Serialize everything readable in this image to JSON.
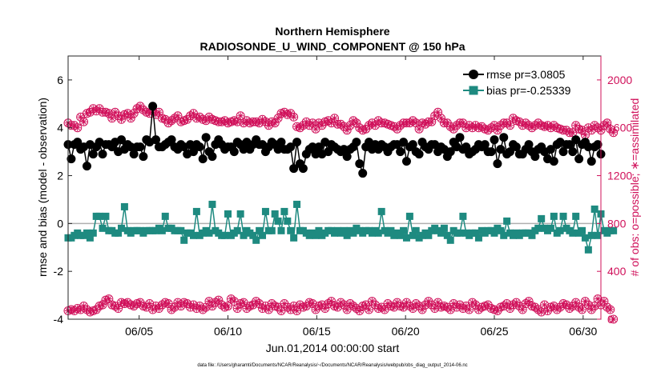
{
  "chart_data": {
    "type": "line",
    "title_line1": "Northern Hemisphere",
    "title_line2": "RADIOSONDE_U_WIND_COMPONENT @ 150 hPa",
    "xlabel": "Jun.01,2014 00:00:00 start",
    "ylabel_left": "rmse and bias (model - observation)",
    "ylabel_right": "# of obs: o=possible; ∗=assimilated",
    "footer": "data file: /Users/gharamti/Documents/NCAR/Reanalysis/~/Documents/NCAR/Reanalysis/webpub/obs_diag_output_2014-06.nc",
    "x_ticks": [
      "06/05",
      "06/10",
      "06/15",
      "06/20",
      "06/25",
      "06/30"
    ],
    "x_tick_days": [
      5,
      10,
      15,
      20,
      25,
      30
    ],
    "xlim": [
      1.0,
      31.0
    ],
    "ylim_left": [
      -4,
      7
    ],
    "y_ticks_left": [
      "-4",
      "-2",
      "0",
      "2",
      "4",
      "6"
    ],
    "ylim_right": [
      0,
      2200
    ],
    "y_ticks_right": [
      "0",
      "400",
      "800",
      "1200",
      "1600",
      "2000"
    ],
    "zero_line": 0,
    "colors": {
      "rmse": "#000000",
      "bias": "#1e8a80",
      "obs": "#d0105a",
      "zero": "#b0b0b0"
    },
    "legend": [
      {
        "label": "rmse pr=3.0805",
        "key": "rmse"
      },
      {
        "label": "bias pr=-0.25339",
        "key": "bias"
      }
    ],
    "series": [
      {
        "name": "rmse",
        "values": [
          3.3,
          2.7,
          3.3,
          3.4,
          3.1,
          3.2,
          2.4,
          3.3,
          2.9,
          3.2,
          3.4,
          2.9,
          3.3,
          3.3,
          3.2,
          3.4,
          3.0,
          3.5,
          3.1,
          3.3,
          3.2,
          2.9,
          3.2,
          3.2,
          2.8,
          3.5,
          3.4,
          4.9,
          3.5,
          3.2,
          3.2,
          3.3,
          3.4,
          3.5,
          3.2,
          3.1,
          3.3,
          3.2,
          2.9,
          3.3,
          3.0,
          3.3,
          3.2,
          2.7,
          3.6,
          3.0,
          2.8,
          3.3,
          3.5,
          3.3,
          3.1,
          3.2,
          3.2,
          3.0,
          3.4,
          3.3,
          3.1,
          3.4,
          3.1,
          3.3,
          3.5,
          3.3,
          3.3,
          3.0,
          3.2,
          3.4,
          3.3,
          3.1,
          3.4,
          3.1,
          3.1,
          3.2,
          2.3,
          3.4,
          2.5,
          2.3,
          2.9,
          3.1,
          3.2,
          2.9,
          3.2,
          2.9,
          3.4,
          3.0,
          3.3,
          3.2,
          3.1,
          3.0,
          3.1,
          2.8,
          3.1,
          3.2,
          3.4,
          2.5,
          2.1,
          3.2,
          3.4,
          3.1,
          3.3,
          3.1,
          3.3,
          3.2,
          3.0,
          3.2,
          3.3,
          3.3,
          3.0,
          3.4,
          2.6,
          3.2,
          3.3,
          3.0,
          2.9,
          3.4,
          3.2,
          3.1,
          3.3,
          3.3,
          3.0,
          3.2,
          3.1,
          2.8,
          3.0,
          3.4,
          3.2,
          3.6,
          3.1,
          3.2,
          2.9,
          3.0,
          3.1,
          3.3,
          3.2,
          3.3,
          3.0,
          3.0,
          3.5,
          2.5,
          3.1,
          3.6,
          2.9,
          3.0,
          3.3,
          3.2,
          2.9,
          2.9,
          3.1,
          3.3,
          3.0,
          2.8,
          3.1,
          3.2,
          3.0,
          2.7,
          3.1,
          2.6,
          3.3,
          3.4,
          3.0,
          3.3,
          3.3,
          3.0,
          3.5,
          2.7,
          3.3,
          3.4,
          3.2,
          2.6,
          3.2,
          3.3,
          2.9
        ]
      },
      {
        "name": "bias",
        "values": [
          -0.6,
          -0.6,
          -0.5,
          -0.4,
          -0.5,
          -0.5,
          -0.4,
          -0.6,
          -0.4,
          0.3,
          0.3,
          -0.2,
          0.3,
          -0.3,
          -0.3,
          -0.4,
          -0.4,
          -0.2,
          0.7,
          -0.3,
          -0.4,
          -0.3,
          -0.3,
          -0.3,
          -0.4,
          -0.3,
          -0.3,
          -0.3,
          -0.3,
          -0.2,
          -0.3,
          0.3,
          -0.2,
          -0.2,
          -0.3,
          -0.3,
          -0.3,
          -0.7,
          -0.4,
          -0.4,
          -0.5,
          0.5,
          -0.5,
          -0.4,
          -0.3,
          -0.4,
          0.8,
          -0.3,
          -0.4,
          -0.5,
          -0.5,
          0.4,
          -0.5,
          -0.4,
          -0.3,
          0.4,
          -0.5,
          -0.3,
          -0.4,
          -0.5,
          -0.7,
          -0.3,
          -0.5,
          0.5,
          -0.3,
          -0.3,
          0.4,
          0.1,
          -0.3,
          0.5,
          0.1,
          -0.3,
          -0.6,
          0.8,
          -0.3,
          -0.3,
          -0.4,
          -0.5,
          -0.4,
          -0.5,
          -0.3,
          -0.5,
          -0.4,
          -0.3,
          -0.3,
          -0.4,
          -0.3,
          -0.4,
          -0.3,
          -0.5,
          -0.3,
          -0.4,
          -0.2,
          -0.3,
          -0.4,
          -0.3,
          -0.3,
          -0.4,
          -0.3,
          -0.4,
          0.5,
          -0.3,
          -0.4,
          -0.3,
          -0.5,
          -0.4,
          -0.5,
          -0.3,
          -0.6,
          0.3,
          -0.5,
          -0.3,
          -0.6,
          -0.5,
          -0.4,
          -0.5,
          -0.3,
          -0.2,
          -0.3,
          -0.4,
          -0.2,
          -0.5,
          -0.7,
          -0.3,
          -0.4,
          -0.4,
          0.3,
          -0.4,
          -0.5,
          -0.4,
          -0.4,
          -0.6,
          -0.3,
          -0.4,
          -0.3,
          -0.3,
          -0.4,
          -0.2,
          -0.3,
          -0.5,
          0.1,
          -0.4,
          -0.5,
          -0.4,
          -0.5,
          -0.4,
          -0.4,
          -0.4,
          -0.5,
          -0.3,
          -0.2,
          0.2,
          -0.2,
          -0.3,
          -0.2,
          0.3,
          -0.4,
          -0.3,
          0.3,
          -0.2,
          -0.3,
          -0.4,
          0.3,
          -0.4,
          -0.3,
          -0.6,
          -1.1,
          -0.5,
          0.6,
          -0.5,
          0.4,
          -0.3,
          -0.4,
          -0.3,
          -0.3
        ]
      },
      {
        "name": "obs_possible_upper",
        "values": [
          1640,
          1620,
          1620,
          1600,
          1690,
          1650,
          1720,
          1730,
          1760,
          1740,
          1760,
          1730,
          1730,
          1720,
          1680,
          1730,
          1700,
          1670,
          1710,
          1720,
          1680,
          1720,
          1760,
          1780,
          1750,
          1730,
          1720,
          1740,
          1710,
          1730,
          1680,
          1670,
          1640,
          1660,
          1680,
          1700,
          1650,
          1660,
          1670,
          1700,
          1720,
          1680,
          1690,
          1670,
          1660,
          1690,
          1670,
          1660,
          1650,
          1650,
          1660,
          1640,
          1650,
          1660,
          1650,
          1700,
          1640,
          1660,
          1640,
          1650,
          1650,
          1640,
          1670,
          1650,
          1620,
          1650,
          1640,
          1680,
          1720,
          1730,
          1710,
          1720,
          1690,
          1610,
          1600,
          1620,
          1650,
          1620,
          1640,
          1590,
          1640,
          1620,
          1650,
          1660,
          1640,
          1680,
          1630,
          1630,
          1610,
          1580,
          1620,
          1660,
          1640,
          1600,
          1580,
          1590,
          1620,
          1640,
          1620,
          1660,
          1640,
          1640,
          1630,
          1620,
          1610,
          1590,
          1620,
          1640,
          1640,
          1640,
          1660,
          1640,
          1590,
          1640,
          1630,
          1650,
          1650,
          1700,
          1730,
          1680,
          1640,
          1640,
          1610,
          1590,
          1620,
          1640,
          1640,
          1600,
          1620,
          1600,
          1620,
          1600,
          1610,
          1590,
          1580,
          1600,
          1620,
          1580,
          1620,
          1640,
          1640,
          1620,
          1680,
          1660,
          1650,
          1620,
          1640,
          1620,
          1600,
          1620,
          1640,
          1620,
          1610,
          1620,
          1600,
          1620,
          1600,
          1590,
          1580,
          1580,
          1560,
          1560,
          1620,
          1590,
          1580,
          1540,
          1600,
          1580,
          1620,
          1600,
          1580,
          1620,
          1640,
          1590,
          1560
        ]
      },
      {
        "name": "obs_assimilated_upper",
        "values": [
          1640,
          1620,
          1620,
          1600,
          1690,
          1650,
          1720,
          1730,
          1760,
          1740,
          1760,
          1730,
          1730,
          1720,
          1680,
          1730,
          1700,
          1670,
          1710,
          1720,
          1680,
          1720,
          1760,
          1780,
          1750,
          1730,
          1720,
          1740,
          1710,
          1730,
          1680,
          1670,
          1640,
          1660,
          1680,
          1700,
          1650,
          1660,
          1670,
          1700,
          1720,
          1680,
          1690,
          1670,
          1660,
          1690,
          1670,
          1660,
          1650,
          1650,
          1660,
          1640,
          1650,
          1660,
          1650,
          1700,
          1640,
          1660,
          1640,
          1650,
          1650,
          1640,
          1670,
          1650,
          1620,
          1650,
          1640,
          1680,
          1720,
          1730,
          1710,
          1720,
          1690,
          1610,
          1600,
          1620,
          1650,
          1620,
          1640,
          1590,
          1640,
          1620,
          1650,
          1660,
          1640,
          1680,
          1630,
          1630,
          1610,
          1580,
          1620,
          1660,
          1640,
          1600,
          1580,
          1590,
          1620,
          1640,
          1620,
          1660,
          1640,
          1640,
          1630,
          1620,
          1610,
          1590,
          1620,
          1640,
          1640,
          1640,
          1660,
          1640,
          1590,
          1640,
          1630,
          1650,
          1650,
          1700,
          1730,
          1680,
          1640,
          1640,
          1610,
          1590,
          1620,
          1640,
          1640,
          1600,
          1620,
          1600,
          1620,
          1600,
          1610,
          1590,
          1580,
          1600,
          1620,
          1580,
          1620,
          1640,
          1640,
          1620,
          1680,
          1660,
          1650,
          1620,
          1640,
          1620,
          1600,
          1620,
          1640,
          1620,
          1610,
          1620,
          1600,
          1620,
          1600,
          1590,
          1580,
          1580,
          1560,
          1560,
          1620,
          1590,
          1580,
          1540,
          1600,
          1580,
          1620,
          1600,
          1580,
          1620,
          1640,
          1590,
          1560
        ]
      },
      {
        "name": "obs_possible_lower",
        "values": [
          70,
          80,
          70,
          90,
          80,
          110,
          80,
          60,
          70,
          80,
          110,
          120,
          160,
          170,
          120,
          110,
          90,
          140,
          130,
          140,
          120,
          110,
          130,
          140,
          110,
          100,
          130,
          80,
          110,
          90,
          120,
          140,
          130,
          80,
          100,
          140,
          110,
          140,
          130,
          100,
          120,
          90,
          110,
          80,
          100,
          150,
          110,
          140,
          160,
          120,
          100,
          110,
          170,
          150,
          90,
          130,
          140,
          90,
          110,
          120,
          150,
          130,
          90,
          110,
          80,
          130,
          110,
          100,
          70,
          130,
          100,
          80,
          110,
          70,
          120,
          100,
          110,
          140,
          130,
          80,
          110,
          120,
          90,
          130,
          150,
          110,
          100,
          140,
          120,
          80,
          130,
          110,
          90,
          70,
          110,
          120,
          80,
          150,
          120,
          90,
          100,
          80,
          130,
          110,
          100,
          140,
          110,
          100,
          140,
          110,
          90,
          130,
          110,
          80,
          120,
          150,
          120,
          90,
          140,
          100,
          110,
          100,
          80,
          130,
          100,
          120,
          90,
          110,
          80,
          140,
          120,
          80,
          100,
          110,
          120,
          90,
          80,
          70,
          100,
          110,
          130,
          90,
          120,
          140,
          110,
          80,
          130,
          150,
          110,
          100,
          80,
          60,
          120,
          70,
          100,
          110,
          80,
          100,
          130,
          120,
          90,
          110,
          140,
          100,
          80,
          150,
          120,
          80,
          110,
          170,
          120,
          150,
          100,
          80,
          0
        ]
      },
      {
        "name": "obs_assimilated_lower",
        "values": [
          70,
          80,
          70,
          90,
          80,
          110,
          80,
          60,
          70,
          80,
          110,
          120,
          160,
          170,
          120,
          110,
          90,
          140,
          130,
          140,
          120,
          110,
          130,
          140,
          110,
          100,
          130,
          80,
          110,
          90,
          120,
          140,
          130,
          80,
          100,
          140,
          110,
          140,
          130,
          100,
          120,
          90,
          110,
          80,
          100,
          150,
          110,
          140,
          160,
          120,
          100,
          110,
          170,
          150,
          90,
          130,
          140,
          90,
          110,
          120,
          150,
          130,
          90,
          110,
          80,
          130,
          110,
          100,
          70,
          130,
          100,
          80,
          110,
          70,
          120,
          100,
          110,
          140,
          130,
          80,
          110,
          120,
          90,
          130,
          150,
          110,
          100,
          140,
          120,
          80,
          130,
          110,
          90,
          70,
          110,
          120,
          80,
          150,
          120,
          90,
          100,
          80,
          130,
          110,
          100,
          140,
          110,
          100,
          140,
          110,
          90,
          130,
          110,
          80,
          120,
          150,
          120,
          90,
          140,
          100,
          110,
          100,
          80,
          130,
          100,
          120,
          90,
          110,
          80,
          140,
          120,
          80,
          100,
          110,
          120,
          90,
          80,
          70,
          100,
          110,
          130,
          90,
          120,
          140,
          110,
          80,
          130,
          150,
          110,
          100,
          80,
          60,
          120,
          70,
          100,
          110,
          80,
          100,
          130,
          120,
          90,
          110,
          140,
          100,
          80,
          150,
          120,
          80,
          110,
          170,
          120,
          150,
          100,
          80,
          0
        ]
      }
    ]
  }
}
